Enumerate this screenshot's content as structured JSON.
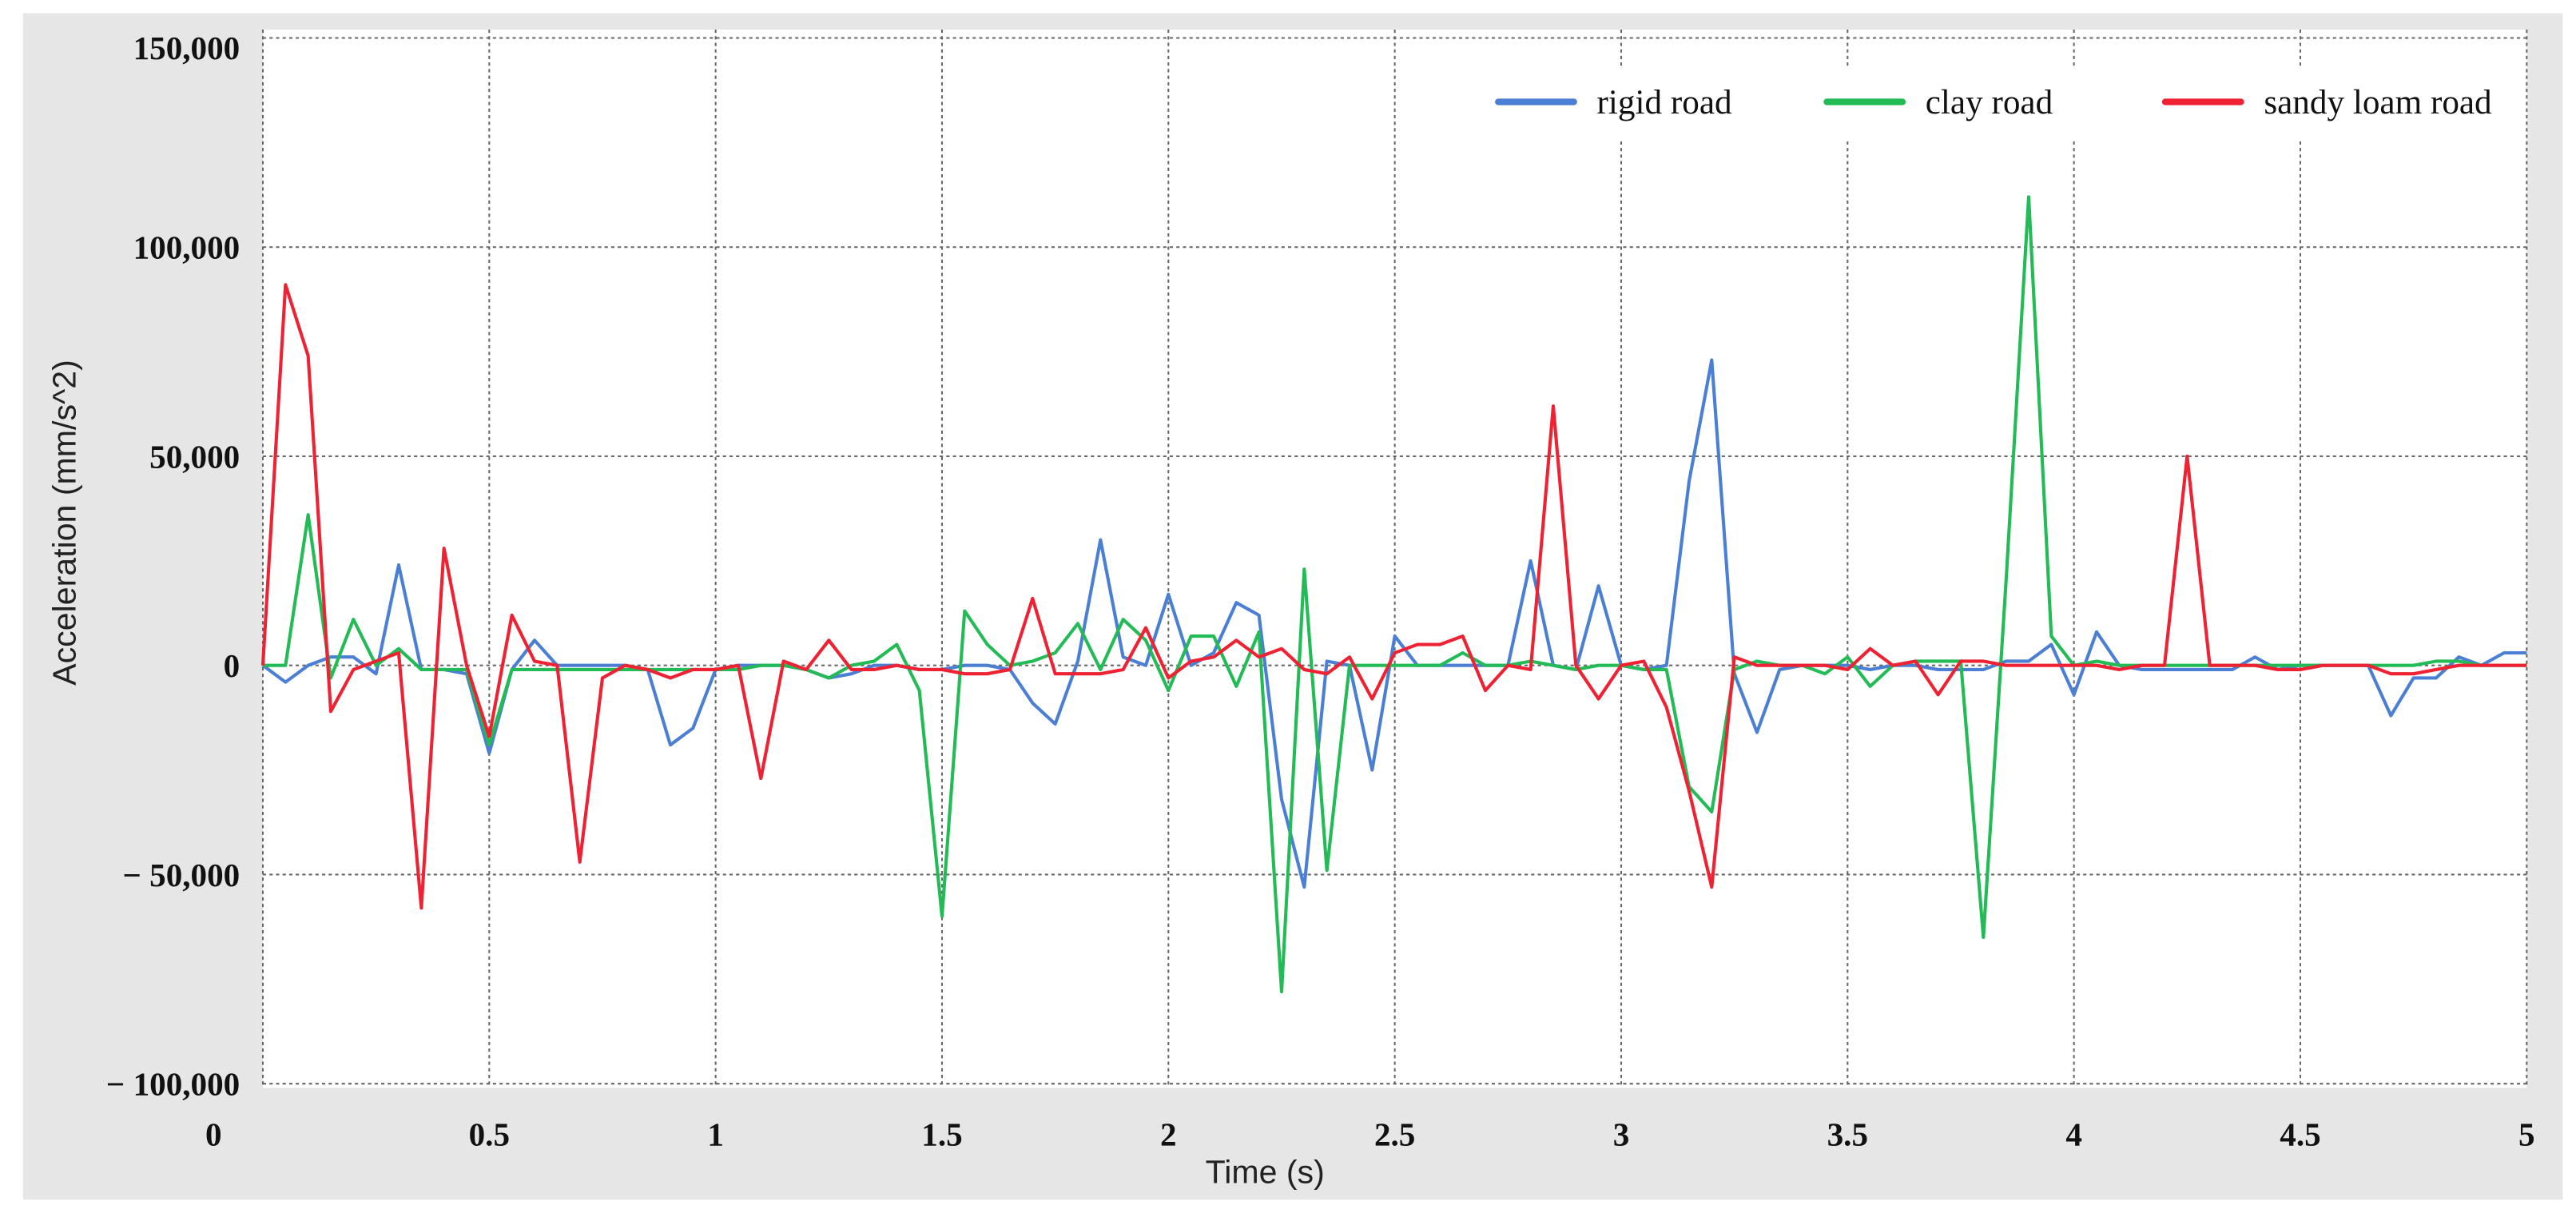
{
  "chart_data": {
    "type": "line",
    "xlabel": "Time (s)",
    "ylabel": "Acceleration (mm/s^2)",
    "x": [
      0,
      0.05,
      0.1,
      0.15,
      0.2,
      0.25,
      0.3,
      0.35,
      0.4,
      0.45,
      0.5,
      0.55,
      0.6,
      0.65,
      0.7,
      0.75,
      0.8,
      0.85,
      0.9,
      0.95,
      1,
      1.05,
      1.1,
      1.15,
      1.2,
      1.25,
      1.3,
      1.35,
      1.4,
      1.45,
      1.5,
      1.55,
      1.6,
      1.65,
      1.7,
      1.75,
      1.8,
      1.85,
      1.9,
      1.95,
      2,
      2.05,
      2.1,
      2.15,
      2.2,
      2.25,
      2.3,
      2.35,
      2.4,
      2.45,
      2.5,
      2.55,
      2.6,
      2.65,
      2.7,
      2.75,
      2.8,
      2.85,
      2.9,
      2.95,
      3,
      3.05,
      3.1,
      3.15,
      3.2,
      3.25,
      3.3,
      3.35,
      3.4,
      3.45,
      3.5,
      3.55,
      3.6,
      3.65,
      3.7,
      3.75,
      3.8,
      3.85,
      3.9,
      3.95,
      4,
      4.05,
      4.1,
      4.15,
      4.2,
      4.25,
      4.3,
      4.35,
      4.4,
      4.45,
      4.5,
      4.55,
      4.6,
      4.65,
      4.7,
      4.75,
      4.8,
      4.85,
      4.9,
      4.95,
      5
    ],
    "series": [
      {
        "name": "rigid road",
        "color": "#4a7fd4",
        "values": [
          0,
          -4000,
          0,
          2000,
          2000,
          -2000,
          24000,
          -1000,
          -1000,
          -2000,
          -21000,
          -1000,
          6000,
          0,
          0,
          0,
          0,
          -1000,
          -19000,
          -15000,
          -1000,
          0,
          0,
          0,
          -1000,
          -3000,
          -2000,
          0,
          0,
          -1000,
          -1000,
          0,
          0,
          -1000,
          -9000,
          -14000,
          1000,
          30000,
          2000,
          0,
          17000,
          0,
          3000,
          15000,
          12000,
          -32000,
          -53000,
          1000,
          0,
          -25000,
          7000,
          0,
          0,
          0,
          0,
          0,
          25000,
          0,
          -1000,
          19000,
          0,
          -1000,
          0,
          44000,
          73000,
          -2000,
          -16000,
          -1000,
          0,
          0,
          0,
          -1000,
          0,
          0,
          -1000,
          -1000,
          -1000,
          1000,
          1000,
          5000,
          -7000,
          8000,
          0,
          -1000,
          -1000,
          -1000,
          -1000,
          -1000,
          2000,
          -1000,
          0,
          0,
          0,
          0,
          -12000,
          -3000,
          -3000,
          2000,
          0,
          3000,
          3000
        ]
      },
      {
        "name": "clay road",
        "color": "#22bb55",
        "values": [
          0,
          0,
          36000,
          -3000,
          11000,
          0,
          4000,
          -1000,
          -1000,
          -1000,
          -19000,
          -1000,
          -1000,
          -1000,
          -1000,
          -1000,
          -1000,
          -1000,
          -1000,
          -1000,
          -1000,
          -1000,
          0,
          0,
          -1000,
          -3000,
          0,
          1000,
          5000,
          -6000,
          -60000,
          13000,
          5000,
          0,
          1000,
          3000,
          10000,
          -1000,
          11000,
          6000,
          -6000,
          7000,
          7000,
          -5000,
          8000,
          -78000,
          23000,
          -49000,
          0,
          0,
          0,
          0,
          0,
          3000,
          0,
          0,
          1000,
          0,
          -1000,
          0,
          0,
          -1000,
          -1000,
          -29000,
          -35000,
          -1000,
          1000,
          0,
          0,
          -2000,
          2000,
          -5000,
          0,
          1000,
          1000,
          1000,
          -65000,
          20000,
          112000,
          7000,
          0,
          1000,
          0,
          0,
          0,
          0,
          0,
          0,
          0,
          0,
          0,
          0,
          0,
          0,
          0,
          0,
          1000,
          1000,
          0,
          0,
          0
        ]
      },
      {
        "name": "sandy loam road",
        "color": "#ee2233",
        "values": [
          0,
          91000,
          74000,
          -11000,
          -1000,
          1000,
          3000,
          -58000,
          28000,
          0,
          -17000,
          12000,
          1000,
          0,
          -47000,
          -3000,
          0,
          -1000,
          -3000,
          -1000,
          -1000,
          0,
          -27000,
          1000,
          -1000,
          6000,
          -1000,
          -1000,
          0,
          -1000,
          -1000,
          -2000,
          -2000,
          -1000,
          16000,
          -2000,
          -2000,
          -2000,
          -1000,
          9000,
          -3000,
          1000,
          2000,
          6000,
          2000,
          4000,
          -1000,
          -2000,
          2000,
          -8000,
          3000,
          5000,
          5000,
          7000,
          -6000,
          0,
          -1000,
          62000,
          0,
          -8000,
          0,
          1000,
          -10000,
          -30000,
          -53000,
          2000,
          0,
          0,
          0,
          0,
          -1000,
          4000,
          0,
          1000,
          -7000,
          1000,
          1000,
          0,
          0,
          0,
          0,
          0,
          -1000,
          0,
          0,
          50000,
          0,
          0,
          0,
          -1000,
          -1000,
          0,
          0,
          0,
          -2000,
          -2000,
          -1000,
          0,
          0,
          0,
          0
        ]
      }
    ],
    "xlim": [
      0,
      5
    ],
    "xticks": [
      0,
      0.5,
      1,
      1.5,
      2,
      2.5,
      3,
      3.5,
      4,
      4.5,
      5
    ],
    "ylim": [
      -101000,
      152000
    ],
    "yticks": [
      {
        "value": -100000,
        "label": "− 100,000"
      },
      {
        "value": -50000,
        "label": "− 50,000"
      },
      0,
      {
        "value": 50000,
        "label": "50,000"
      },
      {
        "value": 100000,
        "label": "100,000"
      },
      {
        "value": 150000,
        "label": "150,000"
      }
    ],
    "grid": true,
    "legend": "top-right"
  }
}
